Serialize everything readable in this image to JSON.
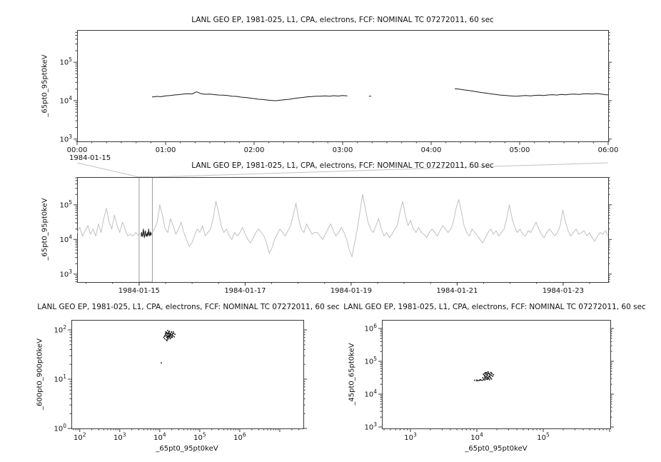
{
  "style": {
    "background": "#ffffff",
    "frame_color": "#3a3a3a",
    "tick_color": "#3a3a3a",
    "text_color": "#111111",
    "series_color": "#1a1a1a",
    "context_series_color": "#c0c0c0",
    "zoom_box_color": "#9a9a9a",
    "zoom_link_color": "#c2c2c2"
  },
  "chart_data": [
    {
      "id": "zoom-timeseries",
      "type": "line",
      "title": "LANL GEO EP, 1981-025, L1, CPA, electrons, FCF: NOMINAL TC 07272011, 60 sec",
      "ylabel": "_65pt0_95pt0keV",
      "x_axis": {
        "kind": "time-linear",
        "unit": "hours",
        "min": 0,
        "max": 6,
        "minor_step": 0.1666667,
        "context_label": "1984-01-15",
        "major": [
          {
            "u": 0,
            "label": "00:00"
          },
          {
            "u": 1,
            "label": "01:00"
          },
          {
            "u": 2,
            "label": "02:00"
          },
          {
            "u": 3,
            "label": "03:00"
          },
          {
            "u": 4,
            "label": "04:00"
          },
          {
            "u": 5,
            "label": "05:00"
          },
          {
            "u": 6,
            "label": "06:00"
          }
        ]
      },
      "y_axis": {
        "kind": "log",
        "min_log": 2.94,
        "max_log": 5.84,
        "labeled_exps": [
          3,
          4,
          5
        ]
      },
      "series": [
        {
          "name": "segment-1",
          "color": "#1a1a1a",
          "x0": 0.85,
          "dx": 0.05,
          "y_scale": 1000,
          "y": [
            12.5,
            12.9,
            12.7,
            13.3,
            13.6,
            14.1,
            14.4,
            14.8,
            15.2,
            15.0,
            17.0,
            15.2,
            14.7,
            14.9,
            14.4,
            14.0,
            13.9,
            13.6,
            13.1,
            12.9,
            12.4,
            12.1,
            11.7,
            11.3,
            10.9,
            10.7,
            10.4,
            10.1,
            10.0,
            10.3,
            10.6,
            10.9,
            11.4,
            11.8,
            12.1,
            12.6,
            12.8,
            13.1,
            13.0,
            13.3,
            13.1,
            13.5,
            13.2,
            13.6,
            13.3
          ]
        },
        {
          "name": "segment-2",
          "color": "#1a1a1a",
          "x0": 4.27,
          "dx": 0.05,
          "y_scale": 1000,
          "y": [
            20.5,
            19.9,
            19.1,
            18.5,
            17.7,
            17.0,
            16.3,
            15.7,
            15.1,
            14.6,
            14.1,
            13.8,
            13.5,
            13.2,
            13.1,
            13.4,
            13.6,
            13.3,
            13.7,
            13.9,
            13.6,
            14.1,
            14.3,
            14.0,
            14.5,
            14.2,
            14.7,
            14.9,
            14.5,
            15.0,
            15.2,
            14.9,
            15.3,
            14.8,
            14.3,
            14.0
          ]
        },
        {
          "name": "stray-sample",
          "color": "#1a1a1a",
          "x0": 3.3,
          "dx": 0.02,
          "y_scale": 1000,
          "y": [
            13.1,
            13.0
          ]
        }
      ]
    },
    {
      "id": "context-timeseries",
      "type": "line",
      "title": "LANL GEO EP, 1981-025, L1, CPA, electrons, FCF: NOMINAL TC 07272011, 60 sec",
      "ylabel": "_65pt0_95pt0keV",
      "x_axis": {
        "kind": "time-linear",
        "unit": "days since 1984-01-15",
        "min": -1.17,
        "max": 8.85,
        "minor_step": 0.5,
        "major": [
          {
            "u": 0,
            "label": "1984-01-15"
          },
          {
            "u": 2,
            "label": "1984-01-17"
          },
          {
            "u": 4,
            "label": "1984-01-19"
          },
          {
            "u": 6,
            "label": "1984-01-21"
          },
          {
            "u": 8,
            "label": "1984-01-23"
          }
        ]
      },
      "y_axis": {
        "kind": "log",
        "min_log": 2.77,
        "max_log": 5.8,
        "labeled_exps": [
          3,
          4,
          5
        ]
      },
      "zoom_region": {
        "x0": 0,
        "x1": 0.25,
        "target_plot": 0
      },
      "series": [
        {
          "name": "context-flux",
          "color": "#c0c0c0",
          "x0": -1.17,
          "dx": 0.05035,
          "y_log": true,
          "y": [
            4.2,
            4.35,
            4.1,
            4.25,
            4.4,
            4.15,
            4.3,
            4.1,
            4.45,
            4.2,
            4.6,
            4.9,
            4.5,
            4.3,
            4.7,
            4.4,
            4.2,
            4.5,
            4.3,
            4.1,
            4.15,
            4.1,
            4.2,
            4.12,
            4.18,
            4.25,
            4.1,
            4.15,
            4.2,
            4.3,
            4.5,
            5.0,
            4.7,
            4.3,
            4.2,
            4.6,
            4.4,
            4.15,
            4.3,
            4.5,
            4.2,
            4.0,
            3.8,
            3.9,
            4.1,
            4.3,
            4.2,
            4.4,
            4.1,
            4.2,
            4.3,
            4.6,
            5.1,
            4.8,
            4.4,
            4.2,
            4.3,
            4.1,
            4.0,
            4.2,
            4.1,
            4.2,
            4.35,
            4.15,
            4.0,
            3.9,
            4.05,
            4.2,
            4.3,
            4.2,
            4.1,
            3.9,
            3.6,
            3.75,
            4.0,
            4.15,
            4.3,
            4.2,
            4.1,
            4.25,
            4.4,
            4.7,
            5.05,
            4.6,
            4.3,
            4.2,
            4.45,
            4.3,
            4.15,
            4.2,
            4.2,
            4.1,
            4.0,
            4.15,
            4.3,
            4.45,
            4.25,
            4.1,
            4.2,
            4.35,
            4.2,
            4.0,
            3.7,
            3.5,
            3.9,
            4.3,
            4.8,
            5.3,
            4.9,
            4.5,
            4.3,
            4.2,
            4.4,
            4.6,
            4.3,
            4.1,
            4.2,
            4.05,
            4.15,
            4.3,
            4.4,
            4.8,
            5.1,
            4.7,
            4.4,
            4.55,
            4.3,
            4.2,
            4.35,
            4.2,
            4.15,
            4.05,
            4.2,
            4.3,
            4.2,
            4.1,
            4.25,
            4.4,
            4.3,
            4.2,
            4.3,
            4.5,
            4.9,
            5.15,
            4.8,
            4.4,
            4.2,
            4.1,
            4.3,
            4.2,
            4.1,
            4.0,
            3.9,
            4.05,
            4.2,
            4.3,
            4.15,
            4.25,
            4.1,
            4.2,
            4.3,
            4.6,
            5.0,
            4.6,
            4.35,
            4.2,
            4.3,
            4.15,
            4.1,
            4.25,
            4.2,
            4.35,
            4.5,
            4.3,
            4.15,
            4.05,
            4.2,
            4.3,
            4.2,
            4.1,
            4.2,
            4.4,
            4.85,
            4.5,
            4.25,
            4.1,
            4.2,
            4.3,
            4.15,
            4.2,
            4.25,
            4.1,
            4.2,
            4.05,
            3.95,
            4.1,
            4.2,
            4.15,
            4.25,
            4.1
          ]
        },
        {
          "name": "zoomed-interval-highlight",
          "color": "#1a1a1a",
          "x0": 0.04,
          "dx": 0.01,
          "y_log": true,
          "y": [
            4.1,
            4.2,
            4.08,
            4.15,
            4.3,
            4.12,
            4.05,
            4.18,
            4.25,
            4.1,
            4.15,
            4.08,
            4.2,
            4.12,
            4.3,
            4.15,
            4.1,
            4.22,
            4.12,
            4.18
          ]
        }
      ]
    },
    {
      "id": "scatter-600-900",
      "type": "scatter",
      "title": "LANL GEO EP, 1981-025, L1, CPA, electrons, FCF: NOMINAL TC 07272011, 60 sec",
      "ylabel": "_600pt0_900pt0keV",
      "xlabel": "_65pt0_95pt0keV",
      "x_axis": {
        "kind": "log",
        "min_log": 1.79,
        "max_log": 7.59,
        "labeled_exps": [
          2,
          3,
          4,
          5,
          6
        ]
      },
      "y_axis": {
        "kind": "log",
        "min_log": 0.0,
        "max_log": 2.203,
        "labeled_exps": [
          0,
          1,
          2
        ]
      },
      "series": [
        {
          "name": "flux-correlation",
          "color": "#151515",
          "points": [
            [
              4.12,
              1.82
            ],
            [
              4.15,
              1.9
            ],
            [
              4.18,
              1.85
            ],
            [
              4.2,
              1.92
            ],
            [
              4.22,
              1.88
            ],
            [
              4.17,
              1.95
            ],
            [
              4.25,
              1.9
            ],
            [
              4.21,
              1.83
            ],
            [
              4.13,
              1.87
            ],
            [
              4.19,
              1.93
            ],
            [
              4.23,
              1.86
            ],
            [
              4.16,
              1.8
            ],
            [
              4.27,
              1.92
            ],
            [
              4.3,
              1.95
            ],
            [
              4.24,
              1.97
            ],
            [
              4.2,
              1.99
            ],
            [
              4.14,
              1.92
            ],
            [
              4.1,
              1.85
            ],
            [
              4.18,
              1.78
            ],
            [
              4.22,
              1.93
            ],
            [
              4.26,
              1.87
            ],
            [
              4.31,
              1.9
            ],
            [
              4.28,
              1.84
            ],
            [
              4.2,
              1.86
            ],
            [
              4.17,
              1.89
            ],
            [
              4.15,
              1.96
            ],
            [
              4.21,
              1.91
            ],
            [
              4.24,
              1.88
            ],
            [
              4.19,
              1.84
            ],
            [
              4.23,
              1.94
            ],
            [
              4.35,
              1.93
            ],
            [
              4.33,
              1.88
            ],
            [
              4.29,
              1.96
            ],
            [
              4.12,
              1.88
            ],
            [
              4.26,
              1.82
            ],
            [
              4.38,
              1.91
            ],
            [
              4.31,
              1.85
            ],
            [
              4.27,
              1.89
            ],
            [
              4.22,
              1.96
            ],
            [
              4.18,
              1.87
            ],
            [
              4.25,
              1.93
            ],
            [
              4.2,
              1.81
            ],
            [
              4.16,
              1.93
            ],
            [
              4.3,
              1.87
            ],
            [
              4.34,
              1.96
            ],
            [
              4.28,
              1.91
            ],
            [
              4.24,
              1.85
            ],
            [
              4.36,
              1.86
            ],
            [
              4.32,
              1.92
            ],
            [
              4.21,
              1.88
            ],
            [
              4.04,
              1.33
            ]
          ]
        }
      ]
    },
    {
      "id": "scatter-45-65",
      "type": "scatter",
      "title": "LANL GEO EP, 1981-025, L1, CPA, electrons, FCF: NOMINAL TC 07272011, 60 sec",
      "ylabel": "_45pt0_65pt0keV",
      "xlabel": "_65pt0_95pt0keV",
      "x_axis": {
        "kind": "log",
        "min_log": 2.57,
        "max_log": 6.01,
        "labeled_exps": [
          3,
          4,
          5
        ]
      },
      "y_axis": {
        "kind": "log",
        "min_log": 2.956,
        "max_log": 6.26,
        "labeled_exps": [
          3,
          4,
          5,
          6
        ]
      },
      "series": [
        {
          "name": "flux-correlation",
          "color": "#151515",
          "points": [
            [
              3.97,
              4.42
            ],
            [
              4.0,
              4.43
            ],
            [
              4.02,
              4.41
            ],
            [
              4.04,
              4.42
            ],
            [
              4.06,
              4.43
            ],
            [
              4.08,
              4.42
            ],
            [
              4.1,
              4.44
            ],
            [
              4.12,
              4.43
            ],
            [
              4.05,
              4.44
            ],
            [
              4.0,
              4.41
            ],
            [
              4.14,
              4.46
            ],
            [
              4.17,
              4.5
            ],
            [
              4.19,
              4.55
            ],
            [
              4.2,
              4.6
            ],
            [
              4.18,
              4.64
            ],
            [
              4.15,
              4.66
            ],
            [
              4.12,
              4.63
            ],
            [
              4.11,
              4.58
            ],
            [
              4.13,
              4.53
            ],
            [
              4.16,
              4.48
            ],
            [
              4.2,
              4.52
            ],
            [
              4.22,
              4.57
            ],
            [
              4.23,
              4.62
            ],
            [
              4.21,
              4.66
            ],
            [
              4.17,
              4.68
            ],
            [
              4.13,
              4.66
            ],
            [
              4.1,
              4.61
            ],
            [
              4.12,
              4.56
            ],
            [
              4.15,
              4.51
            ],
            [
              4.18,
              4.47
            ],
            [
              4.21,
              4.49
            ],
            [
              4.24,
              4.54
            ],
            [
              4.25,
              4.59
            ],
            [
              4.22,
              4.64
            ],
            [
              4.19,
              4.61
            ],
            [
              4.16,
              4.57
            ],
            [
              4.14,
              4.6
            ],
            [
              4.17,
              4.63
            ],
            [
              4.2,
              4.58
            ],
            [
              4.18,
              4.53
            ],
            [
              4.15,
              4.55
            ],
            [
              4.13,
              4.49
            ],
            [
              4.16,
              4.45
            ],
            [
              4.19,
              4.44
            ],
            [
              4.22,
              4.46
            ],
            [
              4.11,
              4.47
            ],
            [
              4.09,
              4.5
            ],
            [
              4.14,
              4.64
            ],
            [
              4.16,
              4.61
            ],
            [
              4.12,
              4.52
            ]
          ]
        }
      ]
    }
  ]
}
